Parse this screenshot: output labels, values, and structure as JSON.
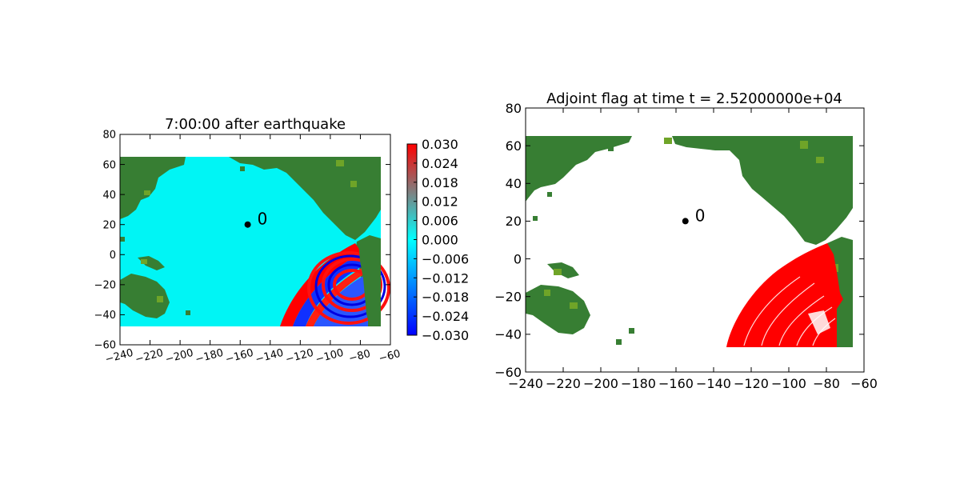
{
  "colors": {
    "ocean": "#00f5f5",
    "land": "#377e33",
    "land_light": "#6fa428",
    "wave_red": "#ff0000",
    "wave_blue": "#0000ff",
    "gauge": "#000000",
    "cmap": [
      "#0000ff",
      "#00ffff",
      "#ff0000"
    ]
  },
  "chart_data": [
    {
      "type": "heatmap",
      "title": "7:00:00 after earthquake",
      "xlabel": "",
      "ylabel": "",
      "xlim": [
        -240,
        -60
      ],
      "ylim": [
        -60,
        80
      ],
      "xticks": [
        "−240",
        "−220",
        "−200",
        "−180",
        "−160",
        "−140",
        "−120",
        "−100",
        "−80",
        "−60"
      ],
      "xtick_values": [
        -240,
        -220,
        -200,
        -180,
        -160,
        -140,
        -120,
        -100,
        -80,
        -60
      ],
      "yticks": [
        "80",
        "60",
        "40",
        "20",
        "0",
        "−20",
        "−40",
        "−60"
      ],
      "ytick_values": [
        80,
        60,
        40,
        20,
        0,
        -20,
        -40,
        -60
      ],
      "data_extent": {
        "x": [
          -240,
          -67
        ],
        "y": [
          -48,
          65
        ]
      },
      "gauge": {
        "label": "0",
        "x": -155,
        "y": 20
      },
      "colorbar": {
        "range": [
          -0.03,
          0.03
        ],
        "ticks": [
          "0.030",
          "0.024",
          "0.018",
          "0.012",
          "0.006",
          "0.000",
          "−0.006",
          "−0.012",
          "−0.018",
          "−0.024",
          "−0.030"
        ],
        "tick_values": [
          0.03,
          0.024,
          0.018,
          0.012,
          0.006,
          0.0,
          -0.006,
          -0.012,
          -0.018,
          -0.024,
          -0.03
        ]
      },
      "grid": false
    },
    {
      "type": "heatmap",
      "title": "Adjoint flag at time t = 2.52000000e+04",
      "xlabel": "",
      "ylabel": "",
      "xlim": [
        -240,
        -60
      ],
      "ylim": [
        -60,
        80
      ],
      "xticks": [
        "−240",
        "−220",
        "−200",
        "−180",
        "−160",
        "−140",
        "−120",
        "−100",
        "−80",
        "−60"
      ],
      "xtick_values": [
        -240,
        -220,
        -200,
        -180,
        -160,
        -140,
        -120,
        -100,
        -80,
        -60
      ],
      "yticks": [
        "80",
        "60",
        "40",
        "20",
        "0",
        "−20",
        "−40",
        "−60"
      ],
      "ytick_values": [
        80,
        60,
        40,
        20,
        0,
        -20,
        -40,
        -60
      ],
      "data_extent": {
        "x": [
          -240,
          -67
        ],
        "y": [
          -48,
          65
        ]
      },
      "gauge": {
        "label": "0",
        "x": -155,
        "y": 20
      },
      "grid": false
    }
  ]
}
